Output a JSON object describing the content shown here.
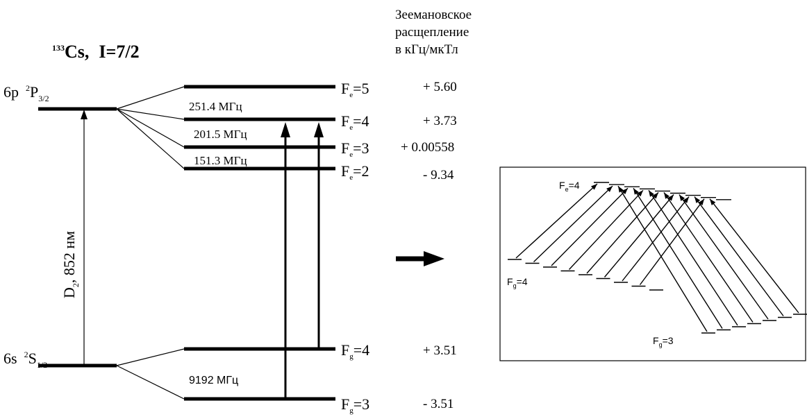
{
  "atom": {
    "mass": "133",
    "symbol": "Cs,",
    "spin": "I=7/2"
  },
  "zeeman_header": [
    "Зеемановское",
    "расщепление",
    "в кГц/мкТл"
  ],
  "excited_state": {
    "config": "6p",
    "sup": "2",
    "term": "P",
    "sub": "3/2"
  },
  "ground_state": {
    "config": "6s",
    "sup": "2",
    "term": "S",
    "sub": "1/2"
  },
  "transition": {
    "label": "D",
    "sub": "2",
    "wavelength": ",   852 нм"
  },
  "excited_levels": [
    {
      "letter": "F",
      "sub": "e",
      "value": "=5",
      "zeeman": "+ 5.60"
    },
    {
      "letter": "F",
      "sub": "e",
      "value": "=4",
      "zeeman": "+ 3.73"
    },
    {
      "letter": "F",
      "sub": "e",
      "value": "=3",
      "zeeman": "+ 0.00558"
    },
    {
      "letter": "F",
      "sub": "e",
      "value": "=2",
      "zeeman": "- 9.34"
    }
  ],
  "ground_levels": [
    {
      "letter": "F",
      "sub": "g",
      "value": "=4",
      "zeeman": "+ 3.51"
    },
    {
      "letter": "F",
      "sub": "g",
      "value": "=3",
      "zeeman": "- 3.51"
    }
  ],
  "splittings": [
    "251.4  МГц",
    "201.5  МГц",
    "151.3  МГц"
  ],
  "ground_splitting": "9192 МГц",
  "inset": {
    "upper": {
      "letter": "F",
      "sub": "e",
      "value": "=4"
    },
    "left": {
      "letter": "F",
      "sub": "g",
      "value": "=4"
    },
    "lower": {
      "letter": "F",
      "sub": "g",
      "value": "=3"
    }
  },
  "colors": {
    "ink": "#000000",
    "background": "#ffffff"
  }
}
